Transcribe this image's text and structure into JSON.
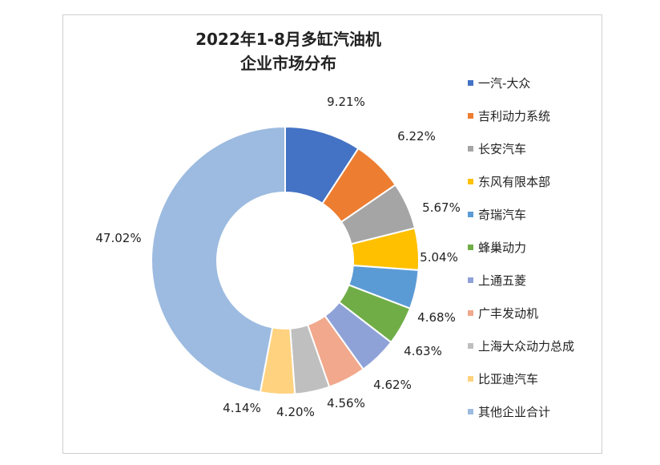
{
  "chart_data": {
    "type": "pie",
    "variant": "donut",
    "title": "2022年1-8月多缸汽油机",
    "subtitle": "企业市场分布",
    "legend_position": "right",
    "categories": [
      "一汽-大众",
      "吉利动力系统",
      "长安汽车",
      "东风有限本部",
      "奇瑞汽车",
      "蜂巢动力",
      "上通五菱",
      "广丰发动机",
      "上海大众动力总成",
      "比亚迪汽车",
      "其他企业合计"
    ],
    "values": [
      9.21,
      6.22,
      5.67,
      5.04,
      4.68,
      4.63,
      4.62,
      4.56,
      4.2,
      4.14,
      47.02
    ],
    "labels": [
      "9.21%",
      "6.22%",
      "5.67%",
      "5.04%",
      "4.68%",
      "4.63%",
      "4.62%",
      "4.56%",
      "4.20%",
      "4.14%",
      "47.02%"
    ],
    "colors": [
      "#4472C4",
      "#ED7D31",
      "#A5A5A5",
      "#FFC000",
      "#5B9BD5",
      "#70AD47",
      "#8FA2D8",
      "#F1A88C",
      "#BFBFBF",
      "#FFD27F",
      "#9DBBE0"
    ]
  }
}
